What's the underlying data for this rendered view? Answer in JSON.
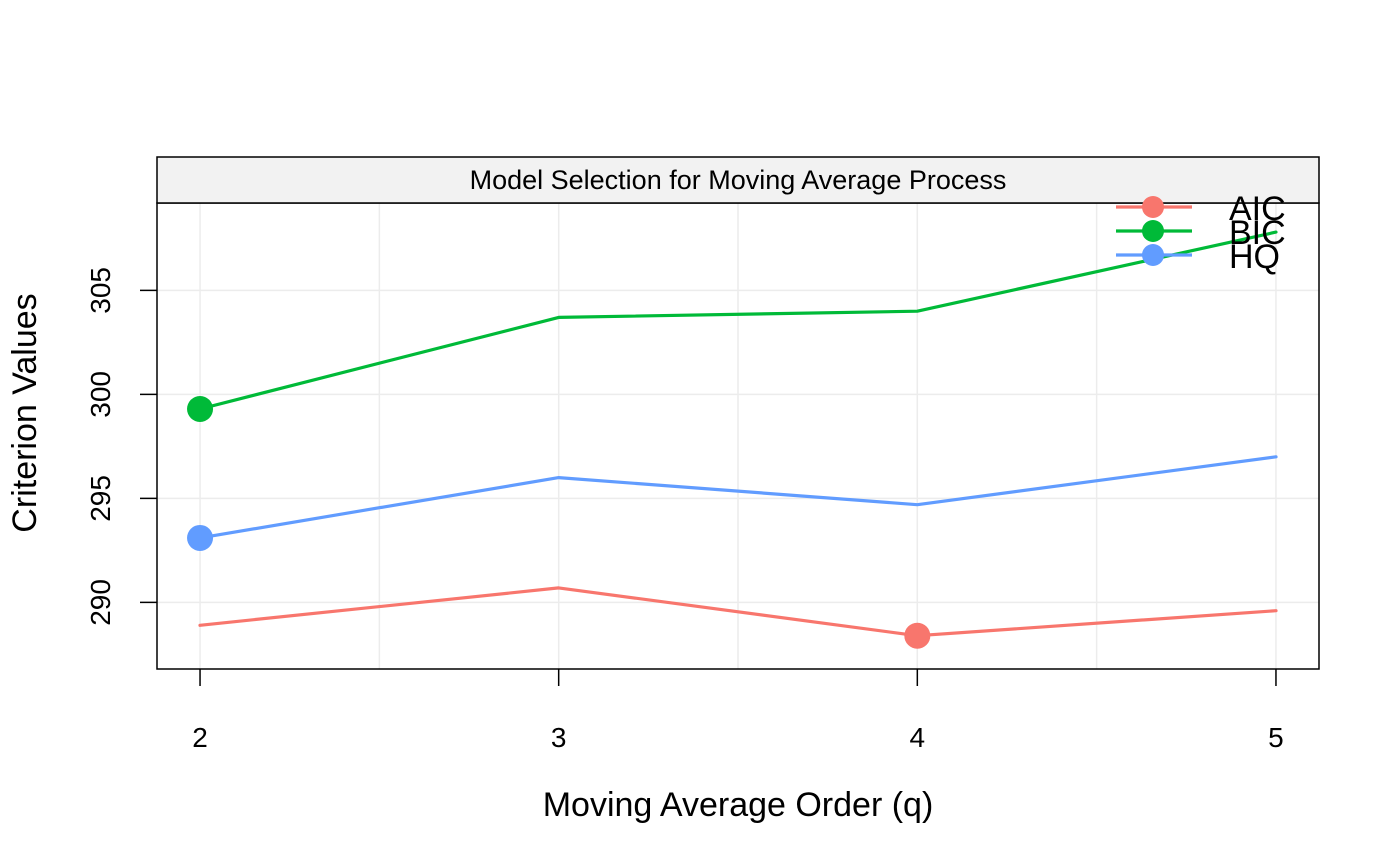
{
  "chart_data": {
    "type": "line",
    "title": "Model Selection for Moving Average Process",
    "xlabel": "Moving Average Order (q)",
    "ylabel": "Criterion Values",
    "x": [
      2,
      3,
      4,
      5
    ],
    "xlim": [
      1.88,
      5.12
    ],
    "ylim": [
      286.8,
      309.2
    ],
    "xticks": [
      2,
      3,
      4,
      5
    ],
    "yticks": [
      290,
      295,
      300,
      305
    ],
    "grid": true,
    "legend_position": "top-right",
    "series": [
      {
        "name": "AIC",
        "color": "#F8766D",
        "values": [
          288.9,
          290.7,
          288.4,
          289.6
        ],
        "highlight_index": 2
      },
      {
        "name": "BIC",
        "color": "#00BA38",
        "values": [
          299.3,
          303.7,
          304.0,
          307.8
        ],
        "highlight_index": 0
      },
      {
        "name": "HQ",
        "color": "#619CFF",
        "values": [
          293.1,
          296.0,
          294.7,
          297.0
        ],
        "highlight_index": 0
      }
    ]
  }
}
